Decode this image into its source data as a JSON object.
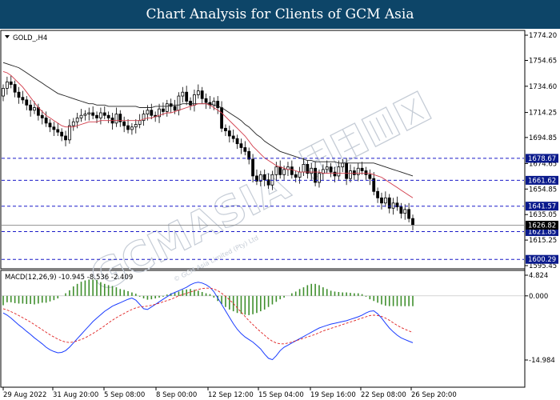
{
  "banner": {
    "title": "Chart Analysis for Clients of GCM Asia"
  },
  "main_panel": {
    "symbol_label": "GOLD_,H4"
  },
  "macd_panel": {
    "label": "MACD(12,26,9) -10.945 -8.536 -2.409"
  },
  "watermark": {
    "text": "GCMASIA",
    "subtext": "© GCM Asia Limited (Pty) Ltd"
  },
  "colors": {
    "banner_bg": "#0d4568",
    "ma_fast": "#d23c4a",
    "ma_slow": "#222222",
    "level_line": "#1a1ac8",
    "tag_bg": "#0a1a8c",
    "macd_histogram": "#3f8f2d",
    "macd_line": "#1a3cff",
    "macd_signal": "#e02020"
  },
  "chart_data": [
    {
      "type": "candlestick",
      "title": "GOLD_,H4",
      "ylim": [
        1595.45,
        1774.2
      ],
      "y_ticks": [
        1774.2,
        1754.65,
        1734.6,
        1714.25,
        1694.85,
        1674.65,
        1654.85,
        1635.05,
        1615.25,
        1595.45
      ],
      "x_ticks": [
        "29 Aug 2022",
        "31 Aug 20:00",
        "5 Sep 08:00",
        "8 Sep 00:00",
        "12 Sep 12:00",
        "15 Sep 04:00",
        "19 Sep 16:00",
        "22 Sep 08:00",
        "26 Sep 20:00"
      ],
      "levels": [
        1678.67,
        1661.62,
        1641.57,
        1621.85,
        1600.29
      ],
      "current_price": 1626.82,
      "close": [
        1733,
        1738,
        1736,
        1730,
        1726,
        1724,
        1720,
        1716,
        1718,
        1712,
        1710,
        1706,
        1703,
        1701,
        1699,
        1696,
        1693,
        1704,
        1707,
        1710,
        1712,
        1713,
        1714,
        1712,
        1710,
        1714,
        1712,
        1710,
        1706,
        1713,
        1707,
        1704,
        1701,
        1703,
        1705,
        1708,
        1713,
        1716,
        1712,
        1711,
        1717,
        1715,
        1721,
        1719,
        1716,
        1727,
        1730,
        1723,
        1720,
        1728,
        1731,
        1725,
        1722,
        1720,
        1723,
        1718,
        1702,
        1700,
        1696,
        1694,
        1690,
        1687,
        1684,
        1678,
        1665,
        1661,
        1666,
        1662,
        1658,
        1666,
        1672,
        1666,
        1670,
        1672,
        1666,
        1664,
        1668,
        1674,
        1667,
        1671,
        1660,
        1667,
        1670,
        1672,
        1668,
        1665,
        1672,
        1675,
        1663,
        1669,
        1666,
        1671,
        1669,
        1666,
        1663,
        1653,
        1648,
        1644,
        1648,
        1640,
        1644,
        1641,
        1636,
        1639,
        1632,
        1626.82
      ],
      "ma_fast": [
        1746,
        1745,
        1743,
        1740,
        1737,
        1734,
        1730,
        1726,
        1722,
        1718,
        1715,
        1712,
        1710,
        1708,
        1706,
        1704,
        1703,
        1703,
        1703,
        1704,
        1705,
        1706,
        1707,
        1707,
        1707,
        1708,
        1708,
        1708,
        1708,
        1708,
        1708,
        1708,
        1708,
        1708,
        1708,
        1708,
        1709,
        1710,
        1710,
        1711,
        1712,
        1713,
        1714,
        1714,
        1715,
        1716,
        1717,
        1718,
        1719,
        1720,
        1721,
        1721,
        1721,
        1720,
        1718,
        1716,
        1714,
        1711,
        1708,
        1705,
        1702,
        1699,
        1696,
        1692,
        1688,
        1685,
        1682,
        1679,
        1677,
        1675,
        1673,
        1672,
        1671,
        1670,
        1670,
        1669,
        1668,
        1668,
        1668,
        1668,
        1668,
        1668,
        1667,
        1667,
        1667,
        1667,
        1667,
        1667,
        1667,
        1667,
        1667,
        1667,
        1667,
        1667,
        1667,
        1666,
        1665,
        1664,
        1662,
        1660,
        1658,
        1656,
        1654,
        1652,
        1650,
        1648
      ],
      "ma_slow": [
        1753,
        1752,
        1751,
        1750,
        1749,
        1747,
        1745,
        1743,
        1741,
        1739,
        1737,
        1735,
        1733,
        1731,
        1729,
        1728,
        1727,
        1726,
        1725,
        1724,
        1723,
        1722,
        1721,
        1721,
        1720,
        1720,
        1720,
        1719,
        1719,
        1719,
        1719,
        1719,
        1719,
        1719,
        1719,
        1718,
        1718,
        1718,
        1718,
        1719,
        1719,
        1719,
        1719,
        1720,
        1720,
        1720,
        1721,
        1721,
        1721,
        1721,
        1721,
        1721,
        1721,
        1721,
        1720,
        1719,
        1718,
        1716,
        1714,
        1712,
        1710,
        1708,
        1705,
        1703,
        1700,
        1697,
        1695,
        1692,
        1690,
        1688,
        1686,
        1684,
        1683,
        1682,
        1681,
        1680,
        1679,
        1678,
        1677,
        1677,
        1676,
        1676,
        1676,
        1676,
        1676,
        1676,
        1675,
        1675,
        1675,
        1675,
        1675,
        1675,
        1675,
        1675,
        1675,
        1675,
        1674,
        1673,
        1672,
        1671,
        1670,
        1669,
        1668,
        1667,
        1666,
        1665
      ]
    },
    {
      "type": "bar+line",
      "title": "MACD(12,26,9) -10.945 -8.536 -2.409",
      "ylim": [
        -14.984,
        4.824
      ],
      "y_ticks": [
        4.824,
        0.0,
        -14.984
      ],
      "series": [
        {
          "name": "MACD(12,26,9)",
          "type": "line",
          "values": [
            -4.0,
            -4.5,
            -5.2,
            -6.0,
            -6.8,
            -7.5,
            -8.3,
            -9.0,
            -9.8,
            -10.5,
            -11.2,
            -12.0,
            -12.6,
            -13.0,
            -13.3,
            -13.2,
            -12.8,
            -12.0,
            -11.0,
            -10.0,
            -9.0,
            -8.0,
            -7.0,
            -6.0,
            -5.2,
            -4.4,
            -3.6,
            -3.0,
            -2.4,
            -2.0,
            -1.6,
            -1.2,
            -0.8,
            -0.5,
            -1.0,
            -2.0,
            -3.0,
            -3.2,
            -2.6,
            -2.0,
            -1.4,
            -0.8,
            -0.2,
            0.4,
            0.8,
            1.2,
            1.6,
            2.0,
            2.6,
            3.0,
            3.2,
            3.0,
            2.6,
            2.0,
            1.0,
            -0.5,
            -2.0,
            -3.5,
            -5.0,
            -6.5,
            -7.8,
            -8.8,
            -9.6,
            -10.2,
            -10.8,
            -11.6,
            -12.4,
            -13.6,
            -14.6,
            -14.9,
            -14.0,
            -12.8,
            -12.0,
            -11.5,
            -11.0,
            -10.5,
            -10.0,
            -9.5,
            -9.0,
            -8.5,
            -8.0,
            -7.5,
            -7.2,
            -6.9,
            -6.6,
            -6.4,
            -6.2,
            -6.0,
            -5.8,
            -5.5,
            -5.2,
            -4.9,
            -4.5,
            -4.0,
            -3.6,
            -3.5,
            -4.2,
            -5.2,
            -6.4,
            -7.5,
            -8.4,
            -9.2,
            -9.8,
            -10.2,
            -10.6,
            -10.945
          ]
        },
        {
          "name": "Signal",
          "type": "line",
          "values": [
            -3.0,
            -3.3,
            -3.7,
            -4.1,
            -4.6,
            -5.1,
            -5.6,
            -6.1,
            -6.7,
            -7.3,
            -7.9,
            -8.5,
            -9.1,
            -9.6,
            -10.1,
            -10.5,
            -10.8,
            -10.9,
            -10.8,
            -10.5,
            -10.2,
            -9.8,
            -9.3,
            -8.8,
            -8.2,
            -7.6,
            -7.0,
            -6.3,
            -5.7,
            -5.1,
            -4.6,
            -4.1,
            -3.6,
            -3.2,
            -2.8,
            -2.6,
            -2.5,
            -2.4,
            -2.2,
            -2.0,
            -1.7,
            -1.4,
            -1.1,
            -0.8,
            -0.4,
            0.0,
            0.3,
            0.6,
            0.9,
            1.2,
            1.5,
            1.7,
            1.8,
            1.8,
            1.6,
            1.2,
            0.6,
            -0.1,
            -0.9,
            -1.8,
            -2.8,
            -3.8,
            -4.8,
            -5.8,
            -6.7,
            -7.6,
            -8.4,
            -9.2,
            -10.0,
            -10.6,
            -11.0,
            -11.2,
            -11.2,
            -11.0,
            -10.8,
            -10.5,
            -10.2,
            -9.9,
            -9.6,
            -9.3,
            -9.0,
            -8.6,
            -8.2,
            -7.9,
            -7.6,
            -7.3,
            -7.0,
            -6.7,
            -6.4,
            -6.1,
            -5.8,
            -5.5,
            -5.2,
            -4.9,
            -4.6,
            -4.5,
            -4.6,
            -4.8,
            -5.2,
            -5.7,
            -6.3,
            -6.9,
            -7.4,
            -7.8,
            -8.2,
            -8.536
          ]
        },
        {
          "name": "Histogram",
          "type": "bar",
          "values": [
            -2.2,
            -1.5,
            -1.5,
            -1.7,
            -1.8,
            -1.8,
            -1.9,
            -1.9,
            -2.0,
            -1.8,
            -1.6,
            -1.6,
            -1.3,
            -1.0,
            -0.6,
            0.0,
            0.6,
            1.3,
            2.2,
            2.8,
            3.3,
            3.6,
            3.8,
            3.8,
            3.7,
            3.2,
            2.8,
            2.5,
            2.3,
            2.0,
            1.6,
            1.4,
            1.1,
            0.8,
            0.5,
            -0.2,
            -0.6,
            -0.9,
            -0.8,
            -0.6,
            -0.4,
            -0.2,
            0.3,
            0.6,
            0.7,
            1.0,
            1.4,
            1.5,
            1.6,
            1.4,
            1.2,
            0.9,
            0.6,
            0.4,
            -0.4,
            -1.2,
            -1.9,
            -2.6,
            -3.2,
            -3.6,
            -4.0,
            -4.2,
            -4.4,
            -4.5,
            -4.3,
            -4.0,
            -3.6,
            -3.2,
            -2.6,
            -2.0,
            -1.4,
            -0.8,
            -0.4,
            0.0,
            0.6,
            1.0,
            1.6,
            2.0,
            2.5,
            2.8,
            2.8,
            2.5,
            2.0,
            1.6,
            1.2,
            1.0,
            0.9,
            0.8,
            0.8,
            0.7,
            0.6,
            0.6,
            0.4,
            -0.2,
            -0.8,
            -1.2,
            -1.6,
            -2.0,
            -2.3,
            -2.4,
            -2.4,
            -2.4,
            -2.409,
            -2.409,
            -2.409,
            -2.409
          ]
        }
      ]
    }
  ]
}
